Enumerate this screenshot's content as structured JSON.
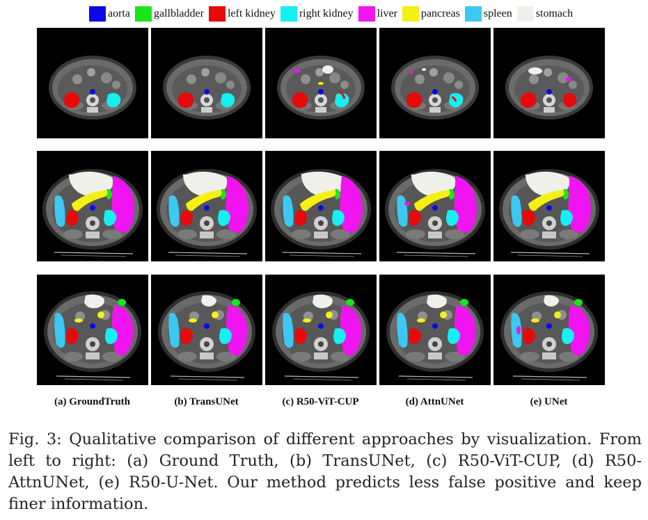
{
  "legend": {
    "items": [
      {
        "label": "aorta",
        "color": "#0a0ae6"
      },
      {
        "label": "gallbladder",
        "color": "#19e619"
      },
      {
        "label": "left kidney",
        "color": "#e60a0a"
      },
      {
        "label": "right kidney",
        "color": "#14f0f0"
      },
      {
        "label": "liver",
        "color": "#f014f0"
      },
      {
        "label": "pancreas",
        "color": "#f5f014"
      },
      {
        "label": "spleen",
        "color": "#3cc8f0"
      },
      {
        "label": "stomach",
        "color": "#f0f0eb"
      }
    ]
  },
  "columns": [
    {
      "label": "(a) GroundTruth"
    },
    {
      "label": "(b) TransUNet"
    },
    {
      "label": "(c) R50-ViT-CUP"
    },
    {
      "label": "(d) AttnUNet"
    },
    {
      "label": "(e) UNet"
    }
  ],
  "caption": {
    "text": "Fig. 3: Qualitative comparison of different approaches by visualization. From left to right: (a) Ground Truth, (b) TransUNet, (c) R50-ViT-CUP, (d) R50-AttnUNet, (e) R50-U-Net. Our method predicts less false positive and keep finer information."
  }
}
